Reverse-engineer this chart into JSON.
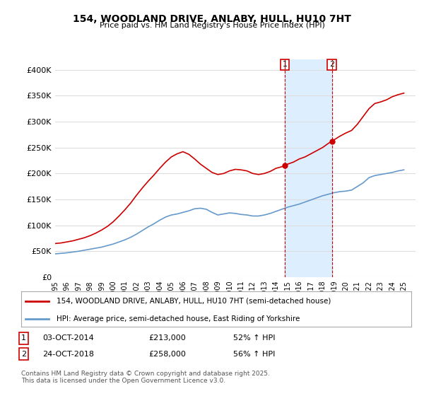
{
  "title": "154, WOODLAND DRIVE, ANLABY, HULL, HU10 7HT",
  "subtitle": "Price paid vs. HM Land Registry's House Price Index (HPI)",
  "ylabel_ticks": [
    "£0",
    "£50K",
    "£100K",
    "£150K",
    "£200K",
    "£250K",
    "£300K",
    "£350K",
    "£400K"
  ],
  "ytick_values": [
    0,
    50000,
    100000,
    150000,
    200000,
    250000,
    300000,
    350000,
    400000
  ],
  "ylim": [
    0,
    420000
  ],
  "xlim_start": 1995,
  "xlim_end": 2026,
  "red_color": "#cc0000",
  "blue_color": "#6699cc",
  "marker1_year": 2014.75,
  "marker2_year": 2018.8,
  "marker1_label": "1",
  "marker2_label": "2",
  "legend_red": "154, WOODLAND DRIVE, ANLABY, HULL, HU10 7HT (semi-detached house)",
  "legend_blue": "HPI: Average price, semi-detached house, East Riding of Yorkshire",
  "table_row1": [
    "1",
    "03-OCT-2014",
    "£213,000",
    "52% ↑ HPI"
  ],
  "table_row2": [
    "2",
    "24-OCT-2018",
    "£258,000",
    "56% ↑ HPI"
  ],
  "footnote": "Contains HM Land Registry data © Crown copyright and database right 2025.\nThis data is licensed under the Open Government Licence v3.0.",
  "background_color": "#ffffff",
  "plot_bg_color": "#ffffff",
  "grid_color": "#dddddd",
  "shade_color": "#ddeeff"
}
